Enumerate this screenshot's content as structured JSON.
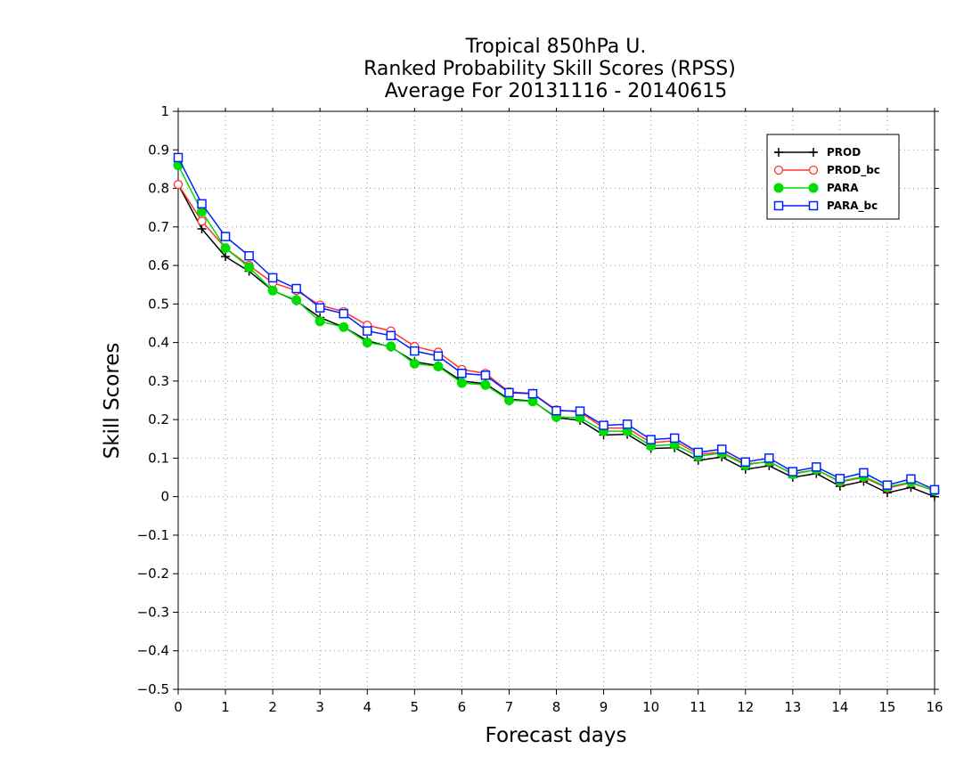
{
  "chart_data": {
    "type": "line",
    "title_lines": [
      "Tropical 850hPa U.",
      "Ranked Probability Skill Scores (RPSS)",
      "Average For 20131116 - 20140615"
    ],
    "xlabel": "Forecast days",
    "ylabel": "Skill Scores",
    "xlim": [
      0,
      16
    ],
    "ylim": [
      -0.5,
      1
    ],
    "xticks": [
      0,
      1,
      2,
      3,
      4,
      5,
      6,
      7,
      8,
      9,
      10,
      11,
      12,
      13,
      14,
      15,
      16
    ],
    "yticks": [
      -0.5,
      -0.4,
      -0.3,
      -0.2,
      -0.1,
      0,
      0.1,
      0.2,
      0.3,
      0.4,
      0.5,
      0.6,
      0.7,
      0.8,
      0.9,
      1
    ],
    "ytick_labels": [
      "−0.5",
      "−0.4",
      "−0.3",
      "−0.2",
      "−0.1",
      "0",
      "0.1",
      "0.2",
      "0.3",
      "0.4",
      "0.5",
      "0.6",
      "0.7",
      "0.8",
      "0.9",
      "1"
    ],
    "grid": true,
    "legend_position": "top-right",
    "x": [
      0,
      0.5,
      1,
      1.5,
      2,
      2.5,
      3,
      3.5,
      4,
      4.5,
      5,
      5.5,
      6,
      6.5,
      7,
      7.5,
      8,
      8.5,
      9,
      9.5,
      10,
      10.5,
      11,
      11.5,
      12,
      12.5,
      13,
      13.5,
      14,
      14.5,
      15,
      15.5,
      16
    ],
    "series": [
      {
        "name": "PROD",
        "color": "#000000",
        "marker": "plus",
        "values": [
          0.81,
          0.695,
          0.623,
          0.585,
          0.535,
          0.508,
          0.465,
          0.44,
          0.405,
          0.388,
          0.35,
          0.34,
          0.3,
          0.293,
          0.253,
          0.248,
          0.205,
          0.198,
          0.16,
          0.162,
          0.125,
          0.127,
          0.094,
          0.103,
          0.071,
          0.08,
          0.05,
          0.06,
          0.027,
          0.04,
          0.01,
          0.024,
          0.0
        ]
      },
      {
        "name": "PROD_bc",
        "color": "#ff3333",
        "marker": "circle",
        "values": [
          0.81,
          0.715,
          0.645,
          0.6,
          0.555,
          0.535,
          0.497,
          0.48,
          0.445,
          0.43,
          0.39,
          0.375,
          0.33,
          0.32,
          0.272,
          0.268,
          0.225,
          0.22,
          0.178,
          0.178,
          0.14,
          0.145,
          0.11,
          0.115,
          0.085,
          0.09,
          0.06,
          0.07,
          0.038,
          0.05,
          0.022,
          0.036,
          0.015
        ]
      },
      {
        "name": "PARA",
        "color": "#00dd00",
        "marker": "dot",
        "values": [
          0.86,
          0.74,
          0.645,
          0.595,
          0.535,
          0.51,
          0.455,
          0.44,
          0.4,
          0.39,
          0.345,
          0.338,
          0.295,
          0.29,
          0.25,
          0.247,
          0.207,
          0.205,
          0.17,
          0.17,
          0.132,
          0.135,
          0.105,
          0.113,
          0.082,
          0.092,
          0.058,
          0.07,
          0.04,
          0.052,
          0.025,
          0.038,
          0.015
        ]
      },
      {
        "name": "PARA_bc",
        "color": "#0022ff",
        "marker": "square",
        "values": [
          0.88,
          0.76,
          0.675,
          0.625,
          0.568,
          0.54,
          0.49,
          0.475,
          0.43,
          0.418,
          0.378,
          0.365,
          0.32,
          0.315,
          0.27,
          0.267,
          0.223,
          0.222,
          0.185,
          0.188,
          0.148,
          0.152,
          0.115,
          0.123,
          0.09,
          0.1,
          0.065,
          0.077,
          0.047,
          0.062,
          0.03,
          0.046,
          0.018
        ]
      }
    ]
  }
}
